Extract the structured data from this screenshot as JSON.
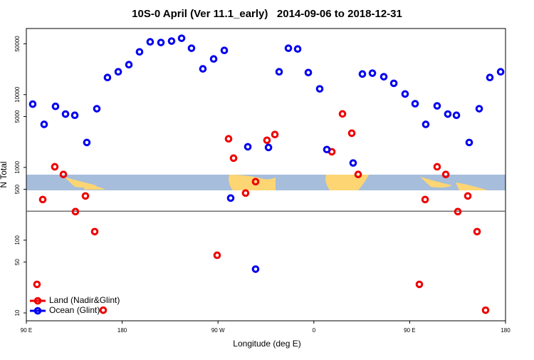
{
  "chart_data": {
    "type": "scatter",
    "title": "10S-0 April (Ver 11.1_early)   2014-09-06 to 2018-12-31",
    "x_label": "Longitude (deg E)",
    "y_label": "N Total",
    "log_y": true,
    "legend": "bottom-left",
    "hline": 250,
    "xlim": [
      90,
      540
    ],
    "ylim": [
      7.8,
      81000
    ],
    "xticks": [
      {
        "value": 90,
        "label": "90 E"
      },
      180,
      {
        "value": 270,
        "label": "90 W"
      },
      {
        "value": 360,
        "label": "0"
      },
      {
        "value": 450,
        "label": "90 E"
      },
      {
        "value": 540,
        "label": "180"
      }
    ],
    "yticks": [
      10,
      50,
      100,
      500,
      1000,
      5000,
      10000,
      50000
    ],
    "series": [
      {
        "name": "Land (Nadir&Glint)",
        "color": "#ee0000",
        "x": [
          100.0,
          105.4,
          116.7,
          124.8,
          136.1,
          145.5,
          154.2,
          162.2,
          269.2,
          279.9,
          284.6,
          295.9,
          305.3,
          316.0,
          323.4,
          376.9,
          386.9,
          395.6,
          401.6,
          459.1,
          464.5,
          475.8,
          483.9,
          495.2,
          504.6,
          513.3,
          521.3
        ],
        "values": [
          24.7,
          362,
          1020,
          800,
          247,
          405,
          131,
          10.9,
          62,
          2470,
          1340,
          444,
          637,
          2360,
          2830,
          1640,
          5430,
          2950,
          800,
          24.7,
          362,
          1020,
          800,
          247,
          405,
          131,
          10.9
        ]
      },
      {
        "name": "Ocean (Glint)",
        "color": "#0000ee",
        "x": [
          96.0,
          106.7,
          117.4,
          126.8,
          135.5,
          146.8,
          156.2,
          166.2,
          176.3,
          186.3,
          196.3,
          206.3,
          216.4,
          226.4,
          235.8,
          245.1,
          255.8,
          265.9,
          275.9,
          281.9,
          298.0,
          305.3,
          317.4,
          327.4,
          336.1,
          344.8,
          354.8,
          365.5,
          372.2,
          396.9,
          405.6,
          415.0,
          425.7,
          435.1,
          445.7,
          455.1,
          465.1,
          475.8,
          485.8,
          493.9,
          505.9,
          515.3,
          525.3,
          535.4
        ],
        "values": [
          7400,
          3900,
          6900,
          5400,
          5200,
          2200,
          6400,
          17200,
          20600,
          25800,
          38700,
          53100,
          52000,
          54400,
          59500,
          43400,
          22600,
          30900,
          40500,
          379,
          1920,
          40,
          1880,
          20600,
          43400,
          42400,
          20100,
          12000,
          1760,
          1150,
          19200,
          19700,
          17600,
          14300,
          10200,
          7500,
          3900,
          7000,
          5400,
          5200,
          2200,
          6400,
          17200,
          20600
        ]
      }
    ]
  }
}
